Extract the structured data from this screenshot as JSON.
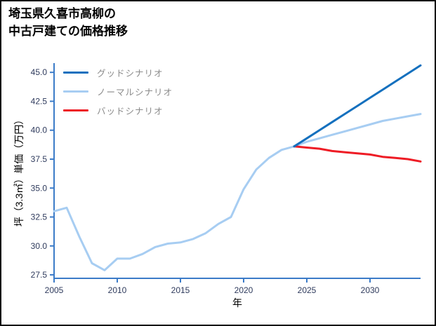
{
  "page": {
    "title_line1": "埼玉県久喜市高柳の",
    "title_line2": "中古戸建ての価格推移"
  },
  "chart_data": {
    "type": "line",
    "title": "埼玉県久喜市高柳の中古戸建ての価格推移",
    "xlabel": "年",
    "ylabel": "坪（3.3㎡）単価（万円）",
    "xlim": [
      2005,
      2034
    ],
    "ylim": [
      27.2,
      45.8
    ],
    "xticks": [
      2005,
      2010,
      2015,
      2020,
      2025,
      2030
    ],
    "yticks": [
      27.5,
      30.0,
      32.5,
      35.0,
      37.5,
      40.0,
      42.5,
      45.0
    ],
    "grid": false,
    "legend_position": "top-left",
    "axis_color": "#3b7bc8",
    "tick_label_color": "#2e3a5c",
    "series": [
      {
        "key": "good-scenario",
        "name": "グッドシナリオ",
        "color": "#1470be",
        "width": 3,
        "x": [
          2024,
          2025,
          2026,
          2027,
          2028,
          2029,
          2030,
          2031,
          2032,
          2033,
          2034
        ],
        "values": [
          38.6,
          39.3,
          40.0,
          40.7,
          41.4,
          42.1,
          42.8,
          43.5,
          44.2,
          44.9,
          45.6
        ]
      },
      {
        "key": "normal-scenario",
        "name": "ノーマルシナリオ",
        "color": "#a7cdf2",
        "width": 3,
        "x": [
          2005,
          2006,
          2007,
          2008,
          2009,
          2010,
          2011,
          2012,
          2013,
          2014,
          2015,
          2016,
          2017,
          2018,
          2019,
          2020,
          2021,
          2022,
          2023,
          2024,
          2025,
          2026,
          2027,
          2028,
          2029,
          2030,
          2031,
          2032,
          2033,
          2034
        ],
        "values": [
          33.0,
          33.3,
          30.8,
          28.5,
          27.9,
          28.9,
          28.9,
          29.3,
          29.9,
          30.2,
          30.3,
          30.6,
          31.1,
          31.9,
          32.5,
          34.9,
          36.6,
          37.6,
          38.3,
          38.6,
          39.0,
          39.3,
          39.6,
          39.9,
          40.2,
          40.5,
          40.8,
          41.0,
          41.2,
          41.4
        ]
      },
      {
        "key": "bad-scenario",
        "name": "バッドシナリオ",
        "color": "#ee1c25",
        "width": 3,
        "x": [
          2024,
          2025,
          2026,
          2027,
          2028,
          2029,
          2030,
          2031,
          2032,
          2033,
          2034
        ],
        "values": [
          38.6,
          38.5,
          38.4,
          38.2,
          38.1,
          38.0,
          37.9,
          37.7,
          37.6,
          37.5,
          37.3
        ]
      }
    ]
  }
}
